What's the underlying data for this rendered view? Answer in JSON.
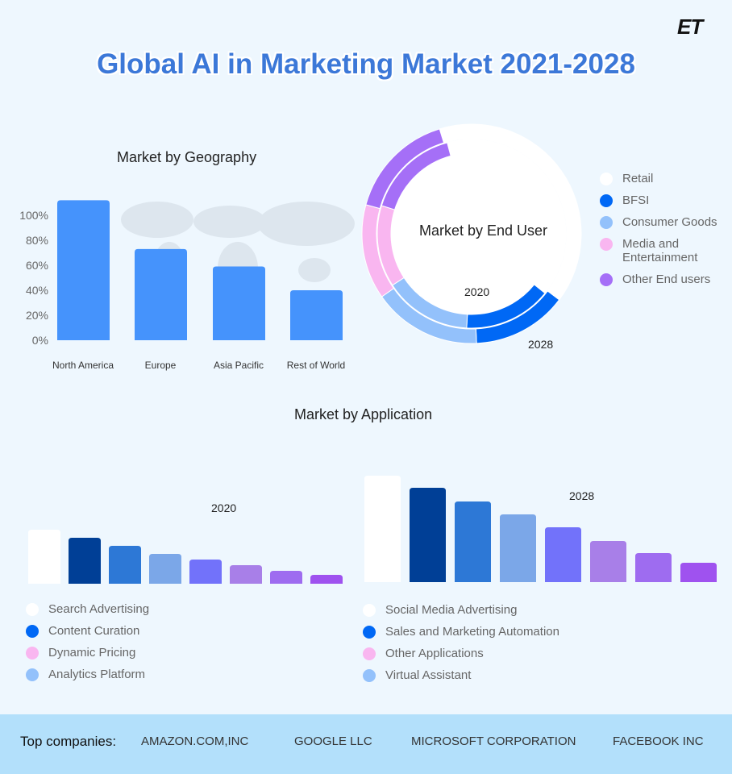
{
  "title": "Global AI in Marketing Market 2021-2028",
  "logo": "ET",
  "chart_data": [
    {
      "type": "bar",
      "title": "Market by Geography",
      "categories": [
        "North America",
        "Europe",
        "Asia Pacific",
        "Rest of World"
      ],
      "values": [
        112,
        73,
        59,
        40
      ],
      "yticks": [
        "0%",
        "20%",
        "40%",
        "60%",
        "80%",
        "100%"
      ],
      "ylim": [
        0,
        115
      ],
      "color": "#4593fc",
      "background": "world map"
    },
    {
      "type": "pie",
      "subtype": "nested-donut",
      "title": "Market by End User",
      "categories": [
        "Retail",
        "BFSI",
        "Consumer Goods",
        "Media and Entertainment",
        "Other End users"
      ],
      "colors": [
        "#ffffff",
        "#0068f5",
        "#93c1fb",
        "#f9b6f0",
        "#a56ff7"
      ],
      "series": [
        {
          "name": "2020",
          "values": [
            40,
            15,
            15,
            14,
            16
          ]
        },
        {
          "name": "2028",
          "values": [
            40,
            14,
            16,
            14,
            16
          ]
        }
      ]
    },
    {
      "type": "bar",
      "title": "Market by Application",
      "colors": [
        "#ffffff",
        "#003f96",
        "#2d78d6",
        "#7ba7e8",
        "#7272fa",
        "#a87fe8",
        "#9e6cf0",
        "#9f52ef"
      ],
      "series": [
        {
          "name": "2020",
          "values": [
            67,
            57,
            47,
            37,
            30,
            23,
            16,
            11
          ]
        },
        {
          "name": "2028",
          "values": [
            132,
            117,
            100,
            84,
            68,
            51,
            36,
            24
          ]
        }
      ],
      "legend_left": [
        {
          "label": "Search Advertising",
          "color": "#ffffff"
        },
        {
          "label": "Content Curation",
          "color": "#0068f5"
        },
        {
          "label": "Dynamic Pricing",
          "color": "#f9b6f0"
        },
        {
          "label": "Analytics Platform",
          "color": "#93c1fb"
        }
      ],
      "legend_right": [
        {
          "label": "Social Media Advertising",
          "color": "#ffffff"
        },
        {
          "label": "Sales and Marketing Automation",
          "color": "#0068f5"
        },
        {
          "label": "Other Applications",
          "color": "#f9b6f0"
        },
        {
          "label": "Virtual Assistant",
          "color": "#93c1fb"
        }
      ]
    }
  ],
  "footer": {
    "label": "Top companies:",
    "companies": [
      "AMAZON.COM,INC",
      "GOOGLE LLC",
      "MICROSOFT CORPORATION",
      "FACEBOOK INC"
    ]
  }
}
